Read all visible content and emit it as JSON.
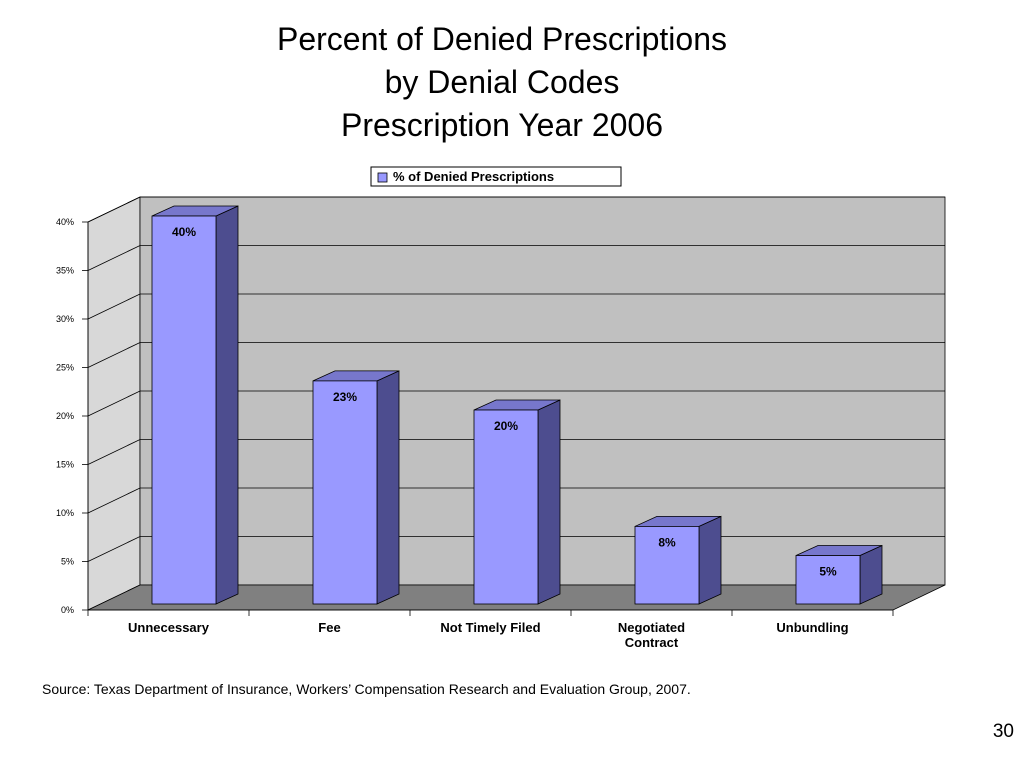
{
  "slide": {
    "title_lines": [
      "Percent of Denied Prescriptions",
      "by Denial Codes",
      "Prescription Year 2006"
    ],
    "source": "Source: Texas Department of Insurance, Workers’ Compensation Research and Evaluation Group, 2007.",
    "page_number": "30"
  },
  "chart_data": {
    "type": "bar",
    "style": "3d-column",
    "categories": [
      [
        "Unnecessary"
      ],
      [
        "Fee"
      ],
      [
        "Not Timely Filed"
      ],
      [
        "Negotiated",
        "Contract"
      ],
      [
        "Unbundling"
      ]
    ],
    "series": [
      {
        "name": "% of Denied Prescriptions",
        "values": [
          40,
          23,
          20,
          8,
          5
        ]
      }
    ],
    "data_labels": [
      "40%",
      "23%",
      "20%",
      "8%",
      "5%"
    ],
    "y_ticks": [
      0,
      5,
      10,
      15,
      20,
      25,
      30,
      35,
      40
    ],
    "y_tick_labels": [
      "0%",
      "5%",
      "10%",
      "15%",
      "20%",
      "25%",
      "30%",
      "35%",
      "40%"
    ],
    "ylim": [
      0,
      40
    ],
    "grid": true,
    "legend_position": "top",
    "colors": {
      "bar_front": "#9999FF",
      "bar_side": "#4D4D8F",
      "bar_top": "#7777CC",
      "back_wall": "#C0C0C0",
      "side_wall": "#D8D8D8",
      "floor": "#808080"
    }
  }
}
